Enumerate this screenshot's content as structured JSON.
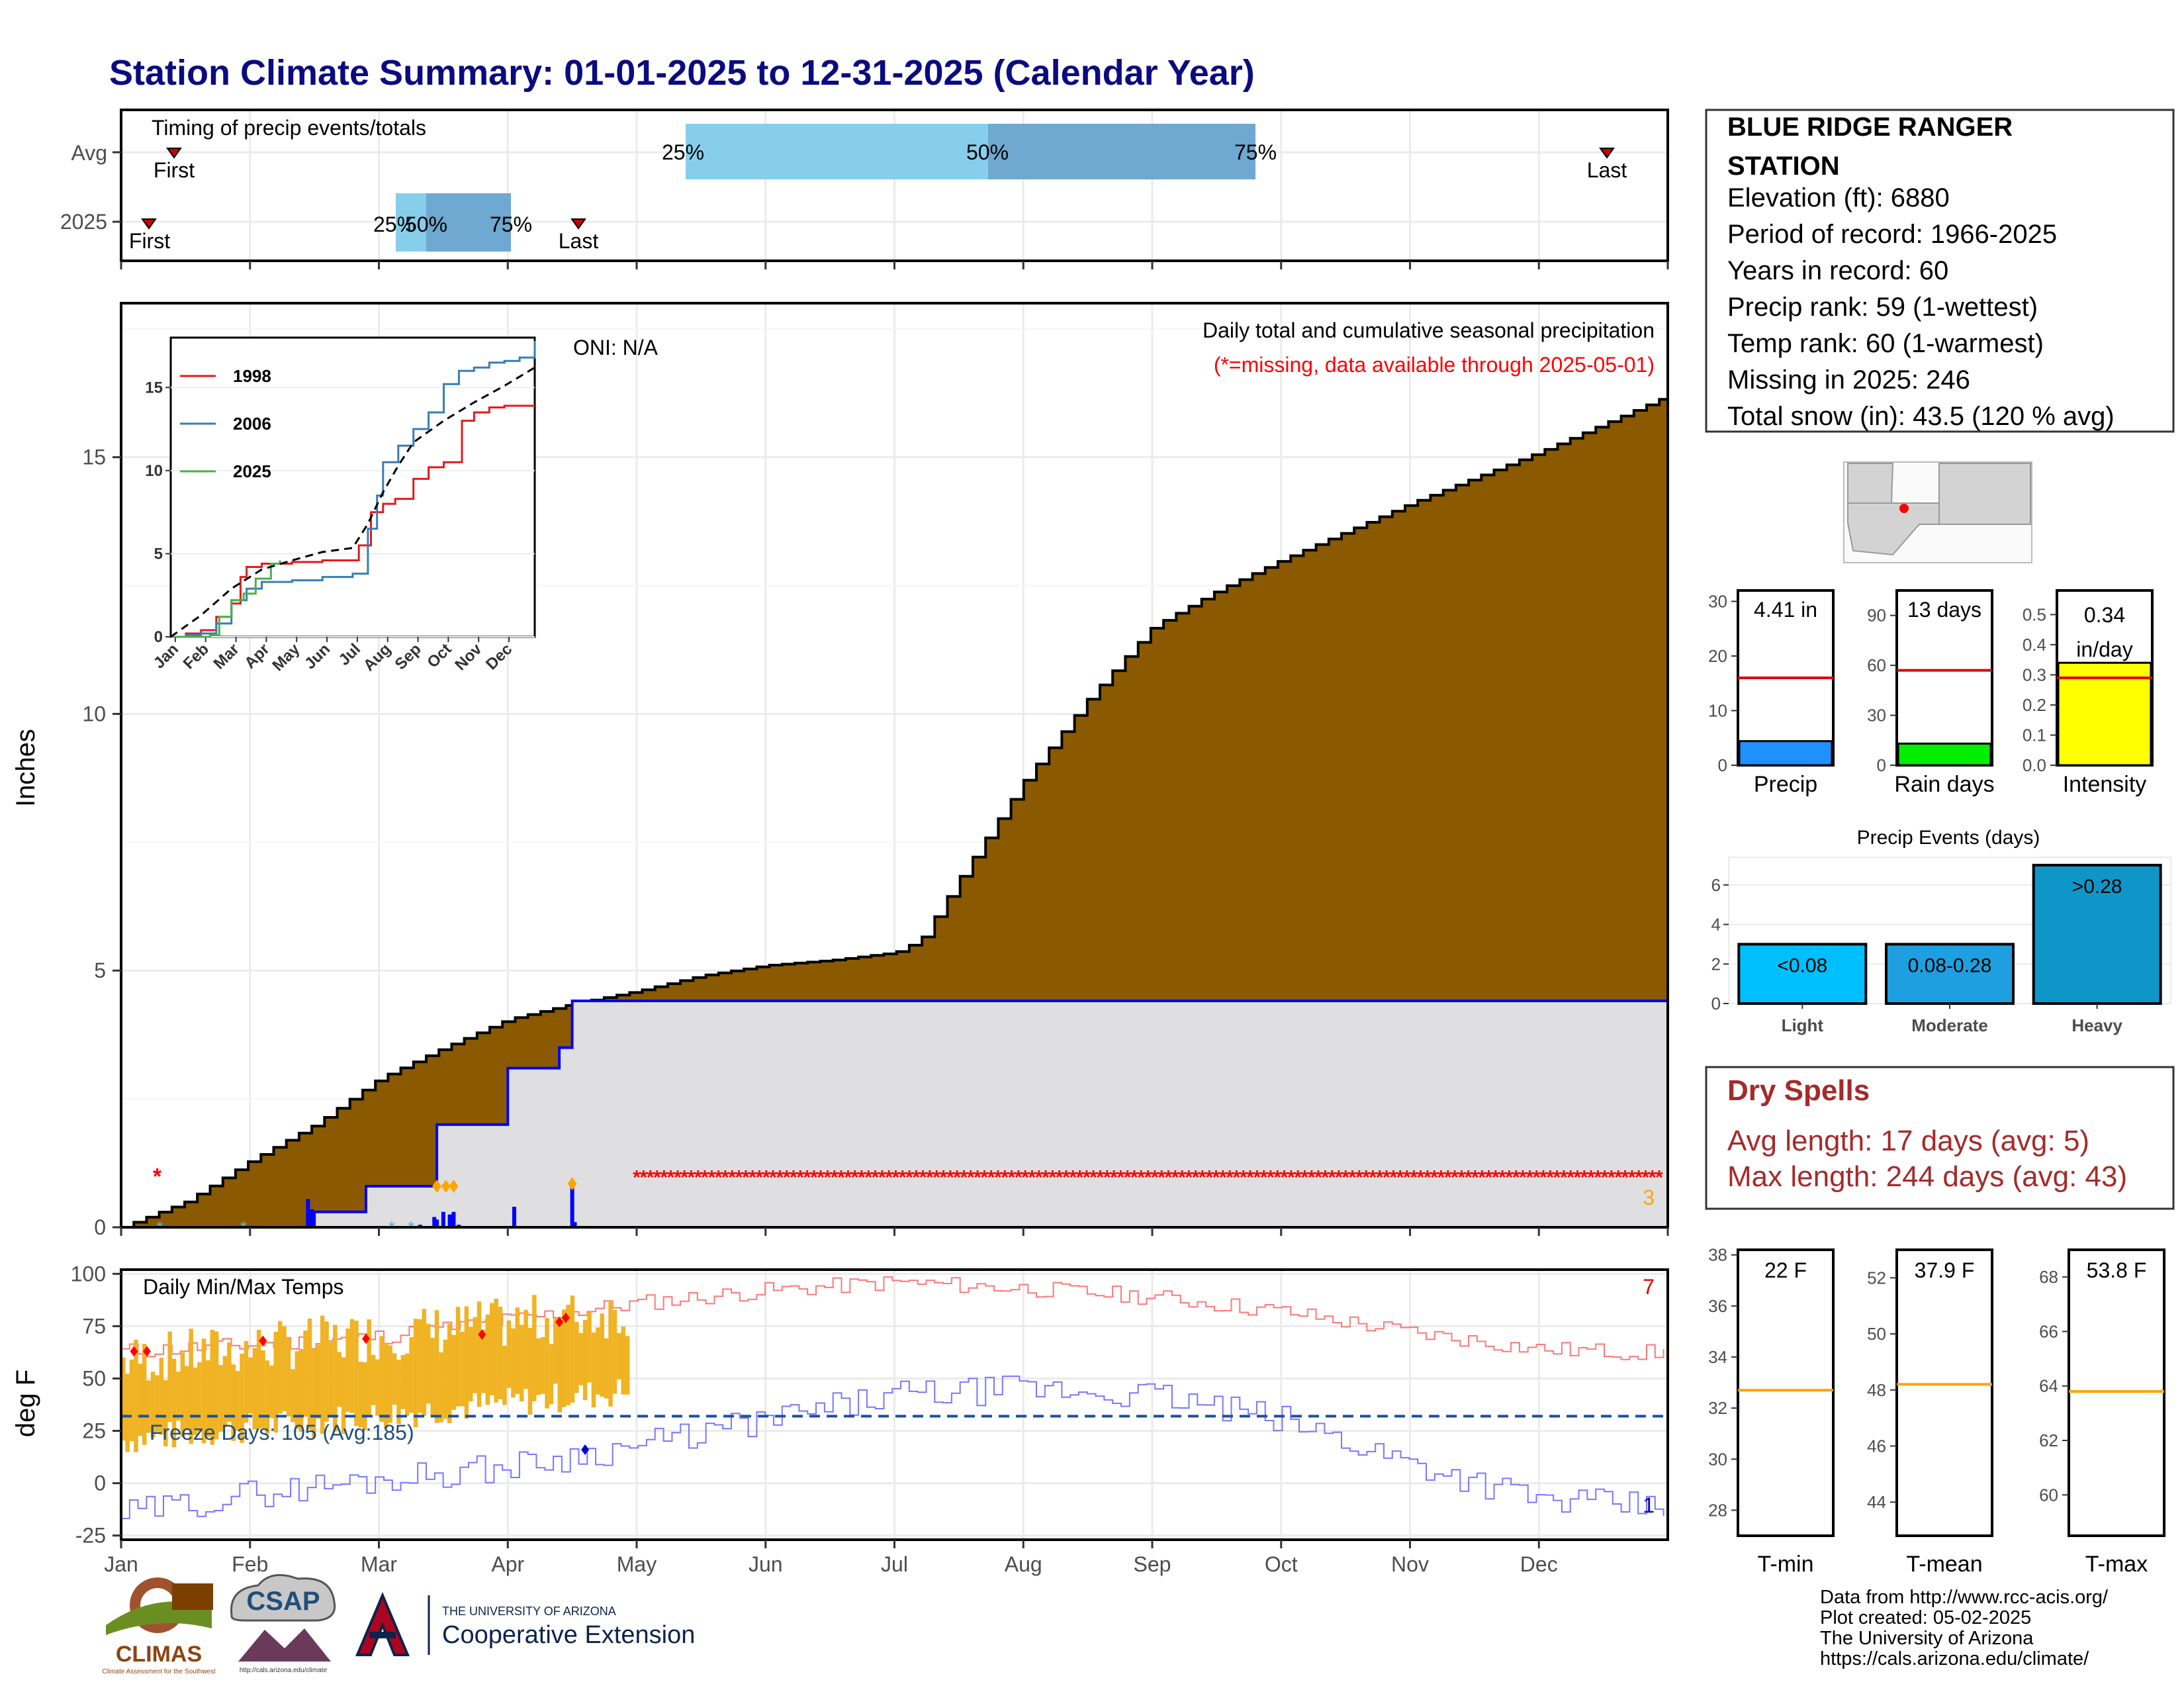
{
  "title": "Station Climate Summary: 01-01-2025 to 12-31-2025 (Calendar Year)",
  "colors": {
    "title": "#0b0b80",
    "cumulative_fill": "#8b5a00",
    "normal_fill": "#dfdfe1",
    "current_line": "#0000ff",
    "missing": "#ff0000",
    "tmin_line": "#7777ff",
    "tmax_line": "#ff7777",
    "temp_bars": "#f0b323",
    "freeze_line": "#1f4e9e"
  },
  "timing": {
    "label": "Timing of precip events/totals",
    "rows": [
      {
        "name": "Avg",
        "first": "First",
        "last": "Last",
        "p25": "25%",
        "p50": "50%",
        "p75": "75%"
      },
      {
        "name": "2025",
        "first": "First",
        "last": "Last",
        "p25": "25%",
        "p50": "50%",
        "p75": "75%"
      }
    ]
  },
  "precip_panel": {
    "ylabel": "Inches",
    "y_ticks": [
      "0",
      "5",
      "10",
      "15"
    ],
    "oni": "ONI: N/A",
    "caption": "Daily total and cumulative seasonal precipitation",
    "missing_note": "(*=missing, data available through 2025-05-01)",
    "corner_count": "3"
  },
  "month_labels": [
    "Jan",
    "Feb",
    "Mar",
    "Apr",
    "May",
    "Jun",
    "Jul",
    "Aug",
    "Sep",
    "Oct",
    "Nov",
    "Dec"
  ],
  "inset": {
    "legend": [
      "1998",
      "2006",
      "2025"
    ],
    "legend_colors": [
      "#e41a1c",
      "#377eb8",
      "#4daf4a"
    ],
    "y_ticks": [
      "0",
      "5",
      "10",
      "15"
    ],
    "x_ticks": [
      "Jan",
      "Feb",
      "Mar",
      "Apr",
      "May",
      "Jun",
      "Jul",
      "Aug",
      "Sep",
      "Oct",
      "Nov",
      "Dec"
    ]
  },
  "temp_panel": {
    "label": "Daily Min/Max Temps",
    "ylabel": "deg F",
    "y_ticks": [
      "100",
      "75",
      "50",
      "25",
      "0",
      "-25"
    ],
    "freeze_text": "Freeze Days: 105 (Avg:185)",
    "max_count": "7",
    "min_count": "1"
  },
  "station": {
    "name_line1": "BLUE RIDGE RANGER",
    "name_line2": "STATION",
    "lines": [
      "Elevation (ft): 6880",
      "Period of record: 1966-2025",
      "Years in record: 60",
      "Precip rank: 59 (1-wettest)",
      "Temp rank: 60 (1-warmest)",
      "Missing in 2025: 246",
      "Total snow (in): 43.5 (120 % avg)"
    ]
  },
  "mini_bars": [
    {
      "label": "Precip",
      "value_text": "4.41 in",
      "value": 4.41,
      "avg": 16,
      "max": 32,
      "ticks": [
        "0",
        "10",
        "20",
        "30"
      ],
      "color": "#1e90ff"
    },
    {
      "label": "Rain days",
      "value_text": "13 days",
      "value": 13,
      "avg": 57,
      "max": 105,
      "ticks": [
        "0",
        "30",
        "60",
        "90"
      ],
      "color": "#00ee00"
    },
    {
      "label": "Intensity",
      "value_text": "0.34 in/day",
      "value": 0.34,
      "avg": 0.29,
      "max": 0.58,
      "ticks": [
        "0.0",
        "0.1",
        "0.2",
        "0.3",
        "0.4",
        "0.5"
      ],
      "color": "#ffff00"
    }
  ],
  "events": {
    "title": "Precip Events (days)",
    "y_ticks": [
      "0",
      "2",
      "4",
      "6"
    ],
    "categories": [
      "Light",
      "Moderate",
      "Heavy"
    ],
    "bar_labels": [
      "<0.08",
      "0.08-0.28",
      ">0.28"
    ],
    "values": [
      3,
      3,
      7
    ]
  },
  "dry_spells": {
    "title": "Dry Spells",
    "avg": "Avg length: 17 days (avg: 5)",
    "max": "Max length: 244 days (avg: 43)"
  },
  "temp_bars": [
    {
      "label": "T-min",
      "value_text": "22 F",
      "value": 22,
      "avg": 32.7,
      "ticks": [
        "28",
        "30",
        "32",
        "34",
        "36",
        "38"
      ]
    },
    {
      "label": "T-mean",
      "value_text": "37.9 F",
      "value": 37.9,
      "avg": 48.2,
      "ticks": [
        "44",
        "46",
        "48",
        "50",
        "52"
      ]
    },
    {
      "label": "T-max",
      "value_text": "53.8 F",
      "value": 53.8,
      "avg": 63.8,
      "ticks": [
        "60",
        "62",
        "64",
        "66",
        "68"
      ]
    }
  ],
  "footer": {
    "lines": [
      "Data from http://www.rcc-acis.org/",
      "Plot created: 05-02-2025",
      "The University of Arizona",
      "https://cals.arizona.edu/climate/"
    ],
    "climas": "CLIMAS",
    "climas_sub": "Climate Assessment for the Southwest",
    "csap": "CSAP",
    "csap_url": "http://cals.arizona.edu/climate",
    "ua_small": "THE UNIVERSITY OF ARIZONA",
    "ua_big": "Cooperative Extension"
  },
  "chart_data": [
    {
      "type": "area",
      "title": "Daily total and cumulative seasonal precipitation",
      "ylabel": "Inches",
      "ylim": [
        0,
        18
      ],
      "x_unit": "month",
      "series": [
        {
          "name": "normal cumulative (avg)",
          "x": [
            0,
            0.5,
            1,
            1.5,
            2,
            2.5,
            3,
            3.5,
            4,
            4.5,
            5,
            5.5,
            6,
            6.2,
            6.5,
            7,
            7.5,
            8,
            8.5,
            9,
            9.5,
            10,
            10.5,
            11,
            11.5,
            12
          ],
          "values": [
            0,
            0.5,
            1.3,
            2.0,
            2.9,
            3.5,
            4.05,
            4.35,
            4.6,
            4.9,
            5.1,
            5.2,
            5.35,
            5.6,
            6.8,
            8.7,
            10.3,
            11.7,
            12.4,
            13.0,
            13.55,
            14.1,
            14.6,
            15.1,
            15.65,
            16.2
          ]
        },
        {
          "name": "2025",
          "x": [
            0,
            1.4,
            1.5,
            1.9,
            2.3,
            2.45,
            3.0,
            3.05,
            3.4,
            3.5,
            12
          ],
          "values": [
            0,
            0,
            0.3,
            0.8,
            0.8,
            2.0,
            3.1,
            3.1,
            3.5,
            4.41,
            4.41
          ]
        }
      ]
    },
    {
      "type": "line",
      "title": "Daily Min/Max Temps",
      "ylabel": "deg F",
      "ylim": [
        -27,
        102
      ],
      "x_unit": "month",
      "series": [
        {
          "name": "avg max",
          "x": [
            0,
            1,
            2,
            3,
            4,
            5,
            6,
            7,
            8,
            9,
            10,
            11,
            12
          ],
          "values": [
            63,
            66,
            70,
            78,
            86,
            92,
            96,
            93,
            89,
            82,
            72,
            64,
            62
          ]
        },
        {
          "name": "avg min",
          "x": [
            0,
            1,
            2,
            3,
            4,
            5,
            6,
            7,
            8,
            9,
            10,
            11,
            12
          ],
          "values": [
            -15,
            -5,
            2,
            8,
            18,
            30,
            42,
            45,
            42,
            30,
            10,
            -8,
            -12
          ]
        },
        {
          "name": "freeze",
          "x": [
            0,
            12
          ],
          "values": [
            32,
            32
          ]
        }
      ]
    }
  ]
}
